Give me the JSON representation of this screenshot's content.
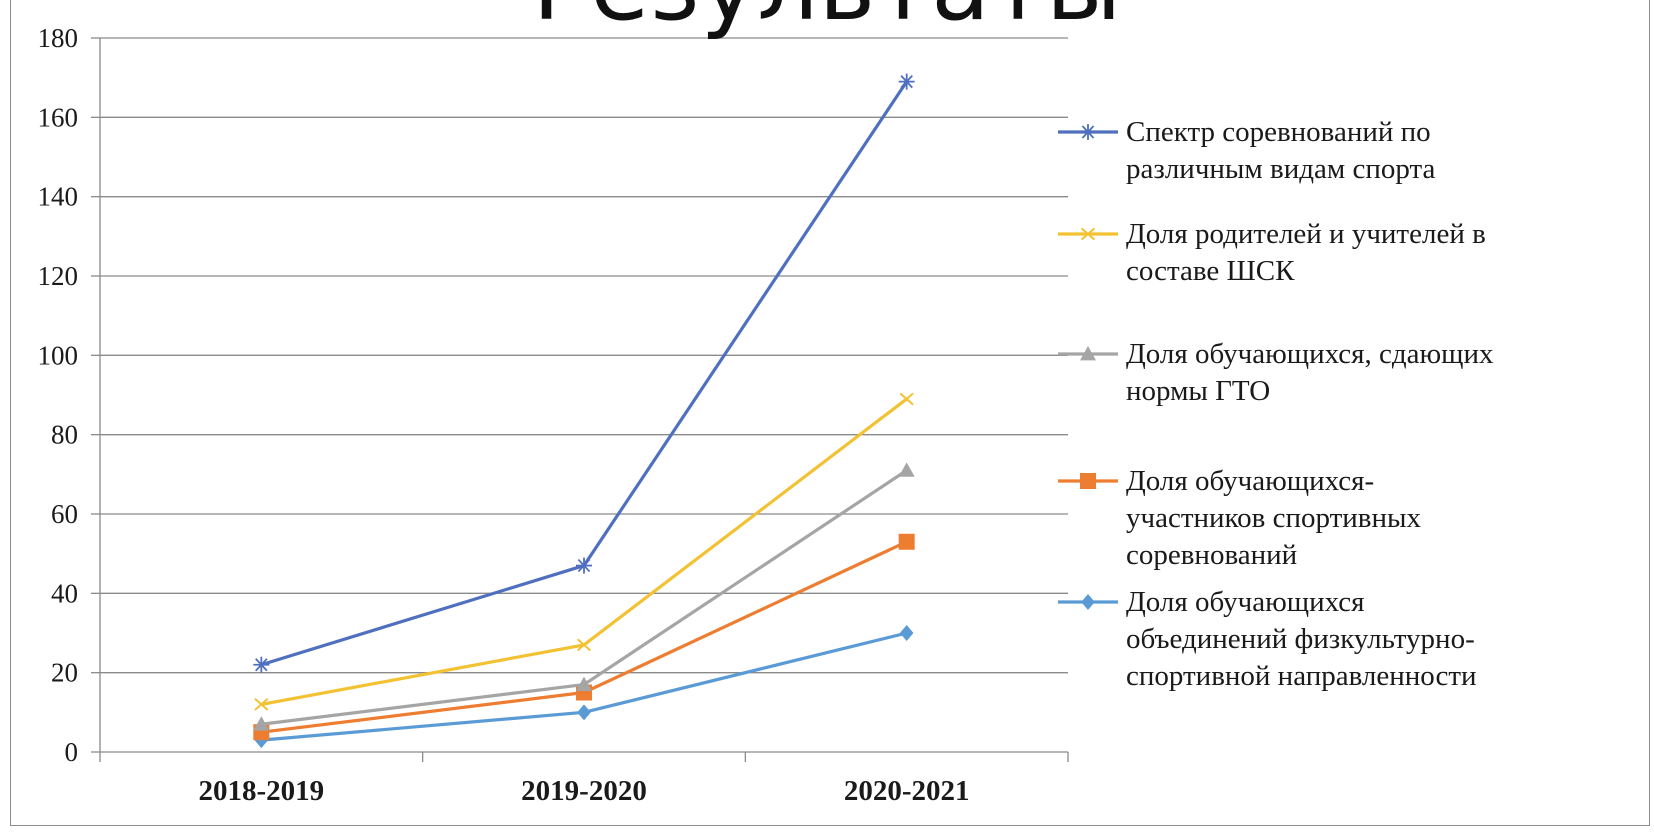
{
  "title": "Результаты",
  "chart_data": {
    "type": "line",
    "title": "",
    "xlabel": "",
    "ylabel": "",
    "categories": [
      "2018-2019",
      "2019-2020",
      "2020-2021"
    ],
    "ylim": [
      0,
      180
    ],
    "yticks": [
      0,
      20,
      40,
      60,
      80,
      100,
      120,
      140,
      160,
      180
    ],
    "grid": true,
    "legend_position": "right",
    "series": [
      {
        "name_lines": [
          "Спектр соревнований по",
          "различным видам спорта"
        ],
        "values": [
          22,
          47,
          169
        ],
        "color": "#4f6fbf",
        "marker": "asterisk"
      },
      {
        "name_lines": [
          "Доля родителей и учителей в",
          "составе ШСК"
        ],
        "values": [
          12,
          27,
          89
        ],
        "color": "#f2c233",
        "marker": "x"
      },
      {
        "name_lines": [
          "Доля обучающихся, сдающих",
          "нормы ГТО"
        ],
        "values": [
          7,
          17,
          71
        ],
        "color": "#a5a5a5",
        "marker": "triangle"
      },
      {
        "name_lines": [
          "Доля обучающихся-",
          "участников  спортивных",
          "соревнований"
        ],
        "values": [
          5,
          15,
          53
        ],
        "color": "#ed7d31",
        "marker": "square"
      },
      {
        "name_lines": [
          "Доля обучающихся",
          "объединений физкультурно-",
          "спортивной направленности"
        ],
        "values": [
          3,
          10,
          30
        ],
        "color": "#5b9bd5",
        "marker": "diamond"
      }
    ]
  }
}
